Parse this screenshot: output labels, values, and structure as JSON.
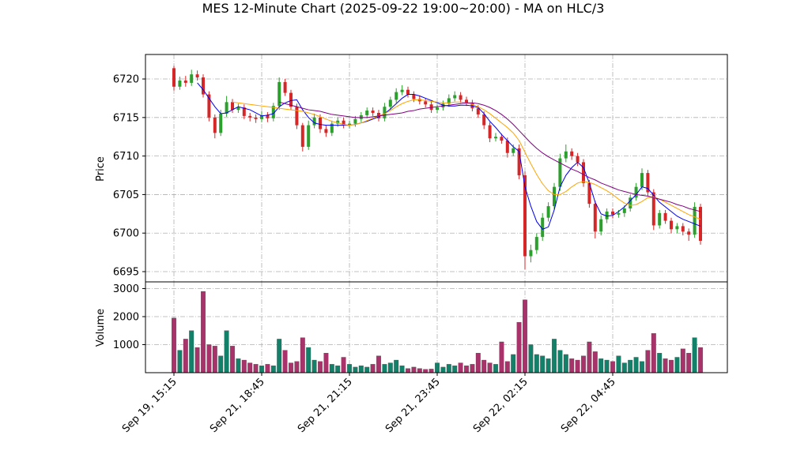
{
  "chart_data": [
    {
      "type": "candlestick",
      "title": "MES 12-Minute Chart (2025-09-22 19:00~20:00) - MA on HLC/3",
      "ylabel": "Price",
      "categories": [
        "Sep 19, 15:15",
        null,
        null,
        null,
        null,
        null,
        null,
        null,
        null,
        null,
        null,
        null,
        null,
        null,
        null,
        "Sep 21, 18:45",
        null,
        null,
        null,
        null,
        null,
        null,
        null,
        null,
        null,
        null,
        null,
        null,
        null,
        null,
        "Sep 21, 21:15",
        null,
        null,
        null,
        null,
        null,
        null,
        null,
        null,
        null,
        null,
        null,
        null,
        null,
        null,
        "Sep 21, 23:45",
        null,
        null,
        null,
        null,
        null,
        null,
        null,
        null,
        null,
        null,
        null,
        null,
        null,
        null,
        "Sep 22, 02:15",
        null,
        null,
        null,
        null,
        null,
        null,
        null,
        null,
        null,
        null,
        null,
        null,
        null,
        null,
        "Sep 22, 04:45",
        null,
        null,
        null,
        null,
        null,
        null,
        null,
        null,
        null,
        null,
        null,
        null,
        null,
        null,
        null
      ],
      "open": [
        6721.4,
        6719.0,
        6719.8,
        6719.5,
        6720.6,
        6720.2,
        6718.0,
        6715.0,
        6713.0,
        6715.5,
        6717.0,
        6716.0,
        6716.3,
        6715.2,
        6715.0,
        6714.8,
        6715.3,
        6714.9,
        6716.5,
        6719.6,
        6718.2,
        6716.4,
        6714.0,
        6711.2,
        6714.0,
        6715.0,
        6713.5,
        6713.0,
        6714.2,
        6714.6,
        6714.0,
        6714.2,
        6714.8,
        6715.3,
        6715.9,
        6715.6,
        6714.9,
        6716.4,
        6717.3,
        6718.3,
        6718.6,
        6718.0,
        6717.4,
        6717.1,
        6716.7,
        6716.0,
        6716.3,
        6716.8,
        6717.5,
        6717.9,
        6717.3,
        6716.9,
        6716.2,
        6715.4,
        6714.0,
        6712.3,
        6712.5,
        6712.0,
        6710.4,
        6711.0,
        6707.5,
        6697.0,
        6697.8,
        6699.5,
        6702.0,
        6703.5,
        6706.0,
        6709.7,
        6710.6,
        6710.0,
        6709.2,
        6706.5,
        6703.8,
        6700.2,
        6701.8,
        6702.8,
        6702.4,
        6702.6,
        6703.2,
        6704.6,
        6706.0,
        6707.8,
        6705.3,
        6701.0,
        6702.6,
        6701.6,
        6700.5,
        6700.9,
        6700.2,
        6699.8,
        6703.4
      ],
      "high": [
        6721.7,
        6720.3,
        6720.4,
        6721.2,
        6721.1,
        6720.6,
        6718.4,
        6715.4,
        6716.0,
        6717.8,
        6717.4,
        6716.8,
        6716.7,
        6715.6,
        6715.4,
        6715.8,
        6715.7,
        6716.9,
        6720.2,
        6720.0,
        6718.6,
        6716.8,
        6714.3,
        6714.6,
        6715.5,
        6715.4,
        6714.0,
        6714.6,
        6715.0,
        6715.0,
        6714.6,
        6715.2,
        6715.7,
        6716.3,
        6716.3,
        6716.0,
        6716.9,
        6717.7,
        6718.8,
        6719.2,
        6719.0,
        6718.4,
        6717.8,
        6717.5,
        6717.1,
        6716.7,
        6717.2,
        6718.0,
        6718.4,
        6718.3,
        6717.7,
        6717.3,
        6716.6,
        6715.8,
        6714.4,
        6713.0,
        6712.9,
        6712.4,
        6711.5,
        6711.5,
        6708.0,
        6698.5,
        6700.0,
        6702.6,
        6704.0,
        6706.5,
        6710.3,
        6711.5,
        6711.0,
        6710.4,
        6709.6,
        6706.9,
        6704.2,
        6702.3,
        6703.2,
        6703.2,
        6703.0,
        6703.6,
        6705.0,
        6706.5,
        6708.4,
        6708.2,
        6705.7,
        6703.0,
        6703.0,
        6702.0,
        6701.3,
        6701.3,
        6700.6,
        6704.0,
        6703.8
      ],
      "low": [
        6718.5,
        6718.6,
        6719.0,
        6719.1,
        6719.8,
        6717.6,
        6714.5,
        6712.3,
        6712.6,
        6715.1,
        6715.6,
        6715.6,
        6714.8,
        6714.5,
        6714.3,
        6714.4,
        6714.4,
        6714.5,
        6716.0,
        6717.8,
        6716.0,
        6713.5,
        6710.6,
        6710.8,
        6713.6,
        6713.0,
        6712.5,
        6712.6,
        6713.8,
        6713.6,
        6713.6,
        6713.8,
        6714.4,
        6714.9,
        6715.2,
        6714.5,
        6714.5,
        6716.0,
        6716.9,
        6717.9,
        6717.6,
        6717.0,
        6716.7,
        6716.3,
        6715.6,
        6715.6,
        6715.9,
        6716.4,
        6717.1,
        6716.9,
        6716.5,
        6715.8,
        6715.0,
        6713.5,
        6711.8,
        6711.9,
        6711.6,
        6709.8,
        6710.0,
        6707.0,
        6695.3,
        6696.2,
        6697.3,
        6699.0,
        6701.5,
        6703.0,
        6705.5,
        6709.2,
        6709.5,
        6708.7,
        6706.0,
        6703.3,
        6699.3,
        6699.7,
        6701.3,
        6701.9,
        6702.0,
        6702.1,
        6702.8,
        6704.2,
        6705.6,
        6704.8,
        6700.4,
        6700.6,
        6701.2,
        6700.0,
        6700.0,
        6699.7,
        6699.0,
        6699.4,
        6698.5
      ],
      "close": [
        6719.0,
        6719.8,
        6719.5,
        6720.6,
        6720.2,
        6718.0,
        6715.0,
        6713.0,
        6715.5,
        6717.0,
        6716.0,
        6716.3,
        6715.2,
        6715.0,
        6714.8,
        6715.3,
        6714.9,
        6716.5,
        6719.6,
        6718.2,
        6716.4,
        6714.0,
        6711.2,
        6714.0,
        6715.0,
        6713.5,
        6713.0,
        6714.2,
        6714.6,
        6714.0,
        6714.2,
        6714.8,
        6715.3,
        6715.9,
        6715.6,
        6714.9,
        6716.4,
        6717.3,
        6718.3,
        6718.6,
        6718.0,
        6717.4,
        6717.1,
        6716.7,
        6716.0,
        6716.3,
        6716.8,
        6717.5,
        6717.9,
        6717.3,
        6716.9,
        6716.2,
        6715.4,
        6714.0,
        6712.3,
        6712.5,
        6712.0,
        6710.4,
        6711.0,
        6707.5,
        6697.0,
        6697.8,
        6699.5,
        6702.0,
        6703.5,
        6706.0,
        6709.7,
        6710.6,
        6710.0,
        6709.2,
        6706.5,
        6703.8,
        6700.2,
        6701.8,
        6702.8,
        6702.4,
        6702.6,
        6703.2,
        6704.6,
        6706.0,
        6707.8,
        6705.3,
        6701.0,
        6702.6,
        6701.6,
        6700.5,
        6700.9,
        6700.2,
        6699.8,
        6703.4,
        6699.0
      ],
      "up_color": "#2ca02c",
      "down_color": "#d62728",
      "series": [
        {
          "color": "#0000ee",
          "values": [
            null,
            null,
            null,
            null,
            6719.5,
            6718.6,
            6717.5,
            6716.4,
            6715.5,
            6715.6,
            6716.0,
            6716.4,
            6716.2,
            6716.0,
            6715.6,
            6715.2,
            6715.3,
            6715.5,
            6716.4,
            6716.9,
            6717.2,
            6717.3,
            6716.0,
            6715.0,
            6714.3,
            6714.1,
            6714.0,
            6714.0,
            6714.0,
            6714.0,
            6714.0,
            6714.1,
            6714.3,
            6714.5,
            6714.8,
            6715.1,
            6715.5,
            6716.1,
            6716.8,
            6717.5,
            6718.0,
            6718.0,
            6717.8,
            6717.5,
            6717.2,
            6716.9,
            6716.6,
            6716.5,
            6716.5,
            6716.6,
            6716.6,
            6716.5,
            6716.3,
            6715.5,
            6714.5,
            6713.7,
            6712.8,
            6712.0,
            6711.2,
            6710.6,
            6706.0,
            6703.5,
            6701.5,
            6700.5,
            6700.8,
            6703.0,
            6706.0,
            6707.5,
            6708.5,
            6709.2,
            6708.5,
            6706.5,
            6704.0,
            6702.5,
            6702.2,
            6702.3,
            6702.8,
            6703.4,
            6704.2,
            6705.0,
            6706.0,
            6705.8,
            6704.9,
            6704.0,
            6703.4,
            6702.8,
            6702.2,
            6701.8,
            6701.5,
            6701.2,
            6700.9
          ]
        },
        {
          "color": "#ffa500",
          "values": [
            null,
            null,
            null,
            null,
            null,
            null,
            null,
            null,
            null,
            null,
            6717.0,
            6716.9,
            6716.8,
            6716.7,
            6716.6,
            6716.5,
            6716.4,
            6716.3,
            6716.2,
            6716.1,
            6716.0,
            6715.9,
            6715.8,
            6715.6,
            6715.4,
            6715.1,
            6714.8,
            6714.5,
            6714.3,
            6714.1,
            6714.0,
            6714.1,
            6714.3,
            6714.6,
            6714.9,
            6715.2,
            6715.5,
            6715.9,
            6716.4,
            6716.8,
            6717.1,
            6717.3,
            6717.3,
            6717.2,
            6717.1,
            6717.0,
            6716.9,
            6716.9,
            6717.0,
            6717.0,
            6716.9,
            6716.7,
            6716.4,
            6716.0,
            6715.5,
            6714.9,
            6714.3,
            6713.7,
            6713.0,
            6712.0,
            6710.5,
            6709.0,
            6707.6,
            6706.4,
            6705.5,
            6705.0,
            6705.0,
            6705.4,
            6706.0,
            6706.5,
            6706.7,
            6706.6,
            6706.3,
            6705.9,
            6705.5,
            6705.0,
            6704.4,
            6703.9,
            6703.6,
            6703.7,
            6704.1,
            6704.6,
            6704.7,
            6704.4,
            6704.0,
            6703.6,
            6703.2,
            6702.8,
            6702.4,
            6702.1,
            6701.8
          ]
        },
        {
          "color": "#800080",
          "values": [
            null,
            null,
            null,
            null,
            null,
            null,
            null,
            null,
            null,
            null,
            null,
            null,
            null,
            null,
            null,
            null,
            null,
            null,
            6717.0,
            6716.8,
            6716.6,
            6716.4,
            6716.2,
            6716.0,
            6715.9,
            6715.8,
            6715.6,
            6715.4,
            6715.3,
            6715.2,
            6715.1,
            6715.0,
            6715.0,
            6715.0,
            6715.1,
            6715.2,
            6715.3,
            6715.4,
            6715.5,
            6715.6,
            6715.8,
            6715.9,
            6716.1,
            6716.2,
            6716.3,
            6716.4,
            6716.5,
            6716.6,
            6716.7,
            6716.8,
            6716.9,
            6716.9,
            6716.8,
            6716.6,
            6716.3,
            6715.9,
            6715.4,
            6714.8,
            6714.1,
            6713.3,
            6712.5,
            6711.7,
            6711.0,
            6710.4,
            6709.9,
            6709.5,
            6709.1,
            6708.7,
            6708.3,
            6708.0,
            6707.6,
            6707.2,
            6706.9,
            6706.5,
            6706.2,
            6705.9,
            6705.6,
            6705.4,
            6705.2,
            6705.0,
            6704.9,
            6704.8,
            6704.6,
            6704.4,
            6704.2,
            6704.0,
            6703.7,
            6703.5,
            6703.2,
            6703.0,
            6702.8
          ]
        }
      ],
      "ylim": [
        6693.67,
        6723.18
      ],
      "yticks": [
        6695,
        6700,
        6705,
        6710,
        6715,
        6720
      ],
      "grid": true
    },
    {
      "type": "volume",
      "ylabel": "Volume",
      "values": [
        1950,
        800,
        1200,
        1500,
        900,
        2900,
        1000,
        950,
        600,
        1500,
        950,
        500,
        450,
        350,
        300,
        250,
        300,
        250,
        1200,
        800,
        350,
        400,
        1250,
        900,
        450,
        400,
        700,
        300,
        250,
        550,
        300,
        200,
        250,
        200,
        300,
        600,
        300,
        350,
        450,
        250,
        150,
        200,
        150,
        120,
        130,
        350,
        200,
        300,
        250,
        350,
        250,
        300,
        700,
        450,
        350,
        300,
        1100,
        400,
        650,
        1800,
        2600,
        1000,
        650,
        600,
        500,
        1200,
        800,
        650,
        500,
        450,
        600,
        1100,
        750,
        500,
        450,
        400,
        600,
        350,
        450,
        550,
        400,
        800,
        1400,
        700,
        500,
        450,
        550,
        850,
        700,
        1250,
        900
      ],
      "up_color": "#13806a",
      "down_color": "#a8326a",
      "ylim": [
        0,
        3240
      ],
      "yticks": [
        1000,
        2000,
        3000
      ],
      "grid": true
    }
  ]
}
